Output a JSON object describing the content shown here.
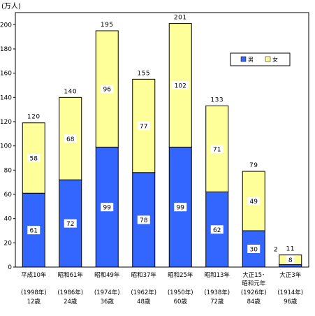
{
  "chart_data": {
    "type": "bar",
    "stacked": true,
    "unit_label": "(万人)",
    "y_ticks": [
      "0",
      "20",
      "40",
      "60",
      "80",
      "100",
      "120",
      "140",
      "160",
      "180",
      "200"
    ],
    "ylim": [
      0,
      210
    ],
    "categories": [
      [
        "平成10年",
        "(1998年)",
        "12歳"
      ],
      [
        "昭和61年",
        "(1986年)",
        "24歳"
      ],
      [
        "昭和49年",
        "(1974年)",
        "36歳"
      ],
      [
        "昭和37年",
        "(1962年)",
        "48歳"
      ],
      [
        "昭和25年",
        "(1950年)",
        "60歳"
      ],
      [
        "昭和13年",
        "(1938年)",
        "72歳"
      ],
      [
        "大正15･",
        "昭和元年",
        "(1926年)",
        "84歳"
      ],
      [
        "大正3年",
        "(1914年)",
        "96歳"
      ]
    ],
    "series": [
      {
        "name": "男",
        "color": "#3366ff",
        "values": [
          61,
          72,
          99,
          78,
          99,
          62,
          30,
          2
        ],
        "labels": [
          "61",
          "72",
          "99",
          "78",
          "99",
          "62",
          "30",
          "2"
        ]
      },
      {
        "name": "女",
        "color": "#ffff99",
        "values": [
          58,
          68,
          96,
          77,
          102,
          71,
          49,
          8
        ],
        "labels": [
          "58",
          "68",
          "96",
          "77",
          "102",
          "71",
          "49",
          "8"
        ]
      }
    ],
    "totals": [
      "120",
      "140",
      "195",
      "155",
      "201",
      "133",
      "79",
      "11"
    ],
    "legend_position": "top-right",
    "grid": false
  }
}
